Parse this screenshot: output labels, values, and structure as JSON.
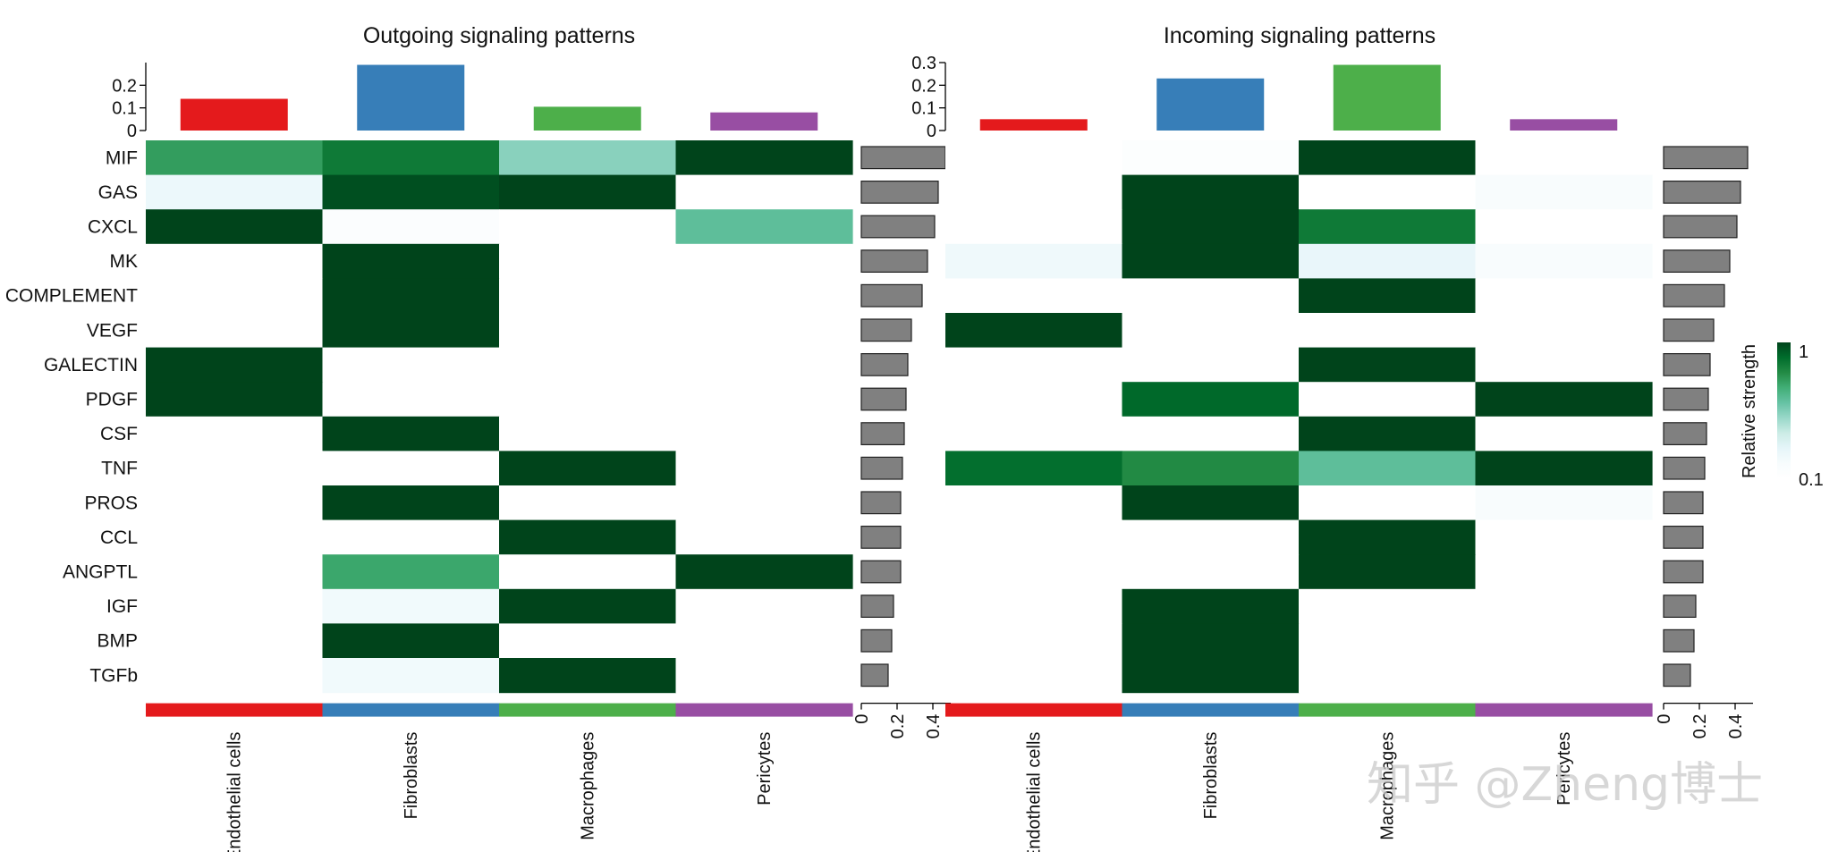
{
  "chart_data": {
    "type": "heatmap",
    "colormap": {
      "low": "#ffffff",
      "high": "#00441b"
    },
    "legend": {
      "title": "Relative strength",
      "max_label": "1",
      "min_label": "0.1",
      "position": "right"
    },
    "pathways": [
      "MIF",
      "GAS",
      "CXCL",
      "MK",
      "COMPLEMENT",
      "VEGF",
      "GALECTIN",
      "PDGF",
      "CSF",
      "TNF",
      "PROS",
      "CCL",
      "ANGPTL",
      "IGF",
      "BMP",
      "TGFb"
    ],
    "cell_types": [
      "Endothelial cells",
      "Fibroblasts",
      "Macrophages",
      "Pericytes"
    ],
    "cell_colors": [
      "#e41a1c",
      "#377eb8",
      "#4daf4a",
      "#984ea3"
    ],
    "panels": [
      {
        "title": "Outgoing signaling patterns",
        "top_bar_ticks": [
          "0",
          "0.1",
          "0.2"
        ],
        "top_bar_ylim": [
          0,
          0.3
        ],
        "top_bar_values": [
          0.14,
          0.29,
          0.105,
          0.08
        ],
        "right_bar_ticks": [
          "0",
          "0.2",
          "0.4"
        ],
        "right_bar_xlim": [
          0,
          0.5
        ],
        "right_bar_values": [
          0.47,
          0.43,
          0.41,
          0.37,
          0.34,
          0.28,
          0.26,
          0.25,
          0.24,
          0.23,
          0.22,
          0.22,
          0.22,
          0.18,
          0.17,
          0.15
        ],
        "matrix": [
          [
            0.72,
            0.84,
            0.48,
            1.0
          ],
          [
            0.18,
            0.97,
            1.0,
            0.0
          ],
          [
            1.0,
            0.06,
            0.0,
            0.58
          ],
          [
            0.0,
            1.0,
            0.0,
            0.0
          ],
          [
            0.0,
            1.0,
            0.0,
            0.0
          ],
          [
            0.0,
            1.0,
            0.0,
            0.0
          ],
          [
            1.0,
            0.0,
            0.0,
            0.0
          ],
          [
            1.0,
            0.0,
            0.0,
            0.0
          ],
          [
            0.0,
            1.0,
            0.0,
            0.0
          ],
          [
            0.0,
            0.0,
            1.0,
            0.0
          ],
          [
            0.0,
            1.0,
            0.0,
            0.0
          ],
          [
            0.0,
            0.0,
            1.0,
            0.0
          ],
          [
            0.0,
            0.69,
            0.0,
            1.0
          ],
          [
            0.0,
            0.15,
            1.0,
            0.0
          ],
          [
            0.0,
            1.0,
            0.0,
            0.0
          ],
          [
            0.0,
            0.15,
            1.0,
            0.0
          ]
        ]
      },
      {
        "title": "Incoming signaling patterns",
        "top_bar_ticks": [
          "0",
          "0.1",
          "0.2",
          "0.3"
        ],
        "top_bar_ylim": [
          0,
          0.3
        ],
        "top_bar_values": [
          0.05,
          0.23,
          0.29,
          0.05
        ],
        "right_bar_ticks": [
          "0",
          "0.2",
          "0.4"
        ],
        "right_bar_xlim": [
          0,
          0.5
        ],
        "right_bar_values": [
          0.47,
          0.43,
          0.41,
          0.37,
          0.34,
          0.28,
          0.26,
          0.25,
          0.24,
          0.23,
          0.22,
          0.22,
          0.22,
          0.18,
          0.17,
          0.15
        ],
        "matrix": [
          [
            0.0,
            0.04,
            1.0,
            0.0
          ],
          [
            0.0,
            1.0,
            0.0,
            0.1
          ],
          [
            0.0,
            1.0,
            0.84,
            0.0
          ],
          [
            0.16,
            1.0,
            0.2,
            0.1
          ],
          [
            0.0,
            0.0,
            1.0,
            0.0
          ],
          [
            1.0,
            0.0,
            0.0,
            0.0
          ],
          [
            0.0,
            0.0,
            1.0,
            0.0
          ],
          [
            0.0,
            0.9,
            0.0,
            1.0
          ],
          [
            0.0,
            0.0,
            1.0,
            0.0
          ],
          [
            0.88,
            0.78,
            0.58,
            1.0
          ],
          [
            0.0,
            1.0,
            0.0,
            0.1
          ],
          [
            0.0,
            0.0,
            1.0,
            0.0
          ],
          [
            0.0,
            0.0,
            1.0,
            0.0
          ],
          [
            0.0,
            1.0,
            0.0,
            0.0
          ],
          [
            0.0,
            1.0,
            0.0,
            0.0
          ],
          [
            0.0,
            1.0,
            0.0,
            0.0
          ]
        ]
      }
    ]
  },
  "watermark": "知乎 @Zheng博士"
}
